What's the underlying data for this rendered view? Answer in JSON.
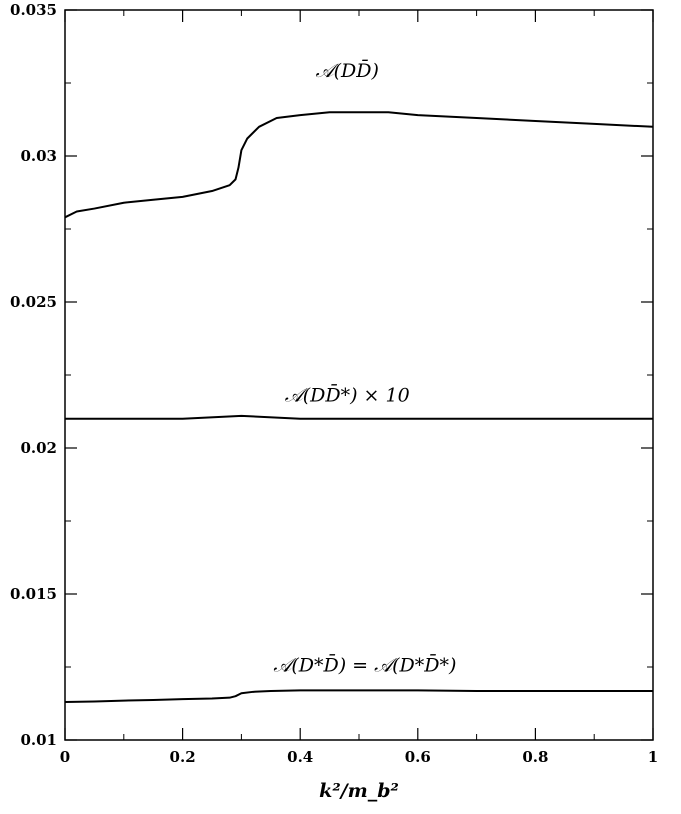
{
  "chart_data": {
    "type": "line",
    "title": "",
    "xlabel": "k²/m_b²",
    "ylabel": "",
    "xlim": [
      0,
      1
    ],
    "ylim": [
      0.01,
      0.035
    ],
    "grid": false,
    "x_ticks": [
      {
        "value": 0,
        "label": "0"
      },
      {
        "value": 0.2,
        "label": "0.2"
      },
      {
        "value": 0.4,
        "label": "0.4"
      },
      {
        "value": 0.6,
        "label": "0.6"
      },
      {
        "value": 0.8,
        "label": "0.8"
      },
      {
        "value": 1,
        "label": "1"
      }
    ],
    "y_ticks": [
      {
        "value": 0.01,
        "label": "0.01"
      },
      {
        "value": 0.015,
        "label": "0.015"
      },
      {
        "value": 0.02,
        "label": "0.02"
      },
      {
        "value": 0.025,
        "label": "0.025"
      },
      {
        "value": 0.03,
        "label": "0.03"
      },
      {
        "value": 0.035,
        "label": "0.035"
      }
    ],
    "series": [
      {
        "name": "𝒜(DD̄)",
        "label_at": {
          "x": 0.48,
          "y": 0.0327
        },
        "x": [
          0,
          0.02,
          0.05,
          0.1,
          0.15,
          0.2,
          0.25,
          0.28,
          0.29,
          0.295,
          0.3,
          0.31,
          0.33,
          0.36,
          0.4,
          0.45,
          0.5,
          0.55,
          0.6,
          0.7,
          0.8,
          0.9,
          1.0
        ],
        "values": [
          0.0279,
          0.0281,
          0.0282,
          0.0284,
          0.0285,
          0.0286,
          0.0288,
          0.029,
          0.0292,
          0.0296,
          0.0302,
          0.0306,
          0.031,
          0.0313,
          0.0314,
          0.0315,
          0.0315,
          0.0315,
          0.0314,
          0.0313,
          0.0312,
          0.0311,
          0.031
        ]
      },
      {
        "name": "𝒜(DD̄*) × 10",
        "label_at": {
          "x": 0.48,
          "y": 0.0216
        },
        "x": [
          0,
          0.1,
          0.2,
          0.3,
          0.4,
          0.5,
          0.6,
          0.7,
          0.8,
          0.9,
          1.0
        ],
        "values": [
          0.021,
          0.021,
          0.021,
          0.0211,
          0.021,
          0.021,
          0.021,
          0.021,
          0.021,
          0.021,
          0.021
        ]
      },
      {
        "name": "𝒜(D*D̄) = 𝒜(D*D̄*)",
        "label_at": {
          "x": 0.51,
          "y": 0.01235
        },
        "x": [
          0,
          0.05,
          0.1,
          0.15,
          0.2,
          0.25,
          0.28,
          0.29,
          0.3,
          0.32,
          0.35,
          0.4,
          0.5,
          0.6,
          0.7,
          0.8,
          0.9,
          1.0
        ],
        "values": [
          0.0113,
          0.01132,
          0.01135,
          0.01137,
          0.0114,
          0.01142,
          0.01145,
          0.0115,
          0.0116,
          0.01165,
          0.01168,
          0.0117,
          0.0117,
          0.0117,
          0.01168,
          0.01168,
          0.01168,
          0.01168
        ]
      }
    ]
  }
}
